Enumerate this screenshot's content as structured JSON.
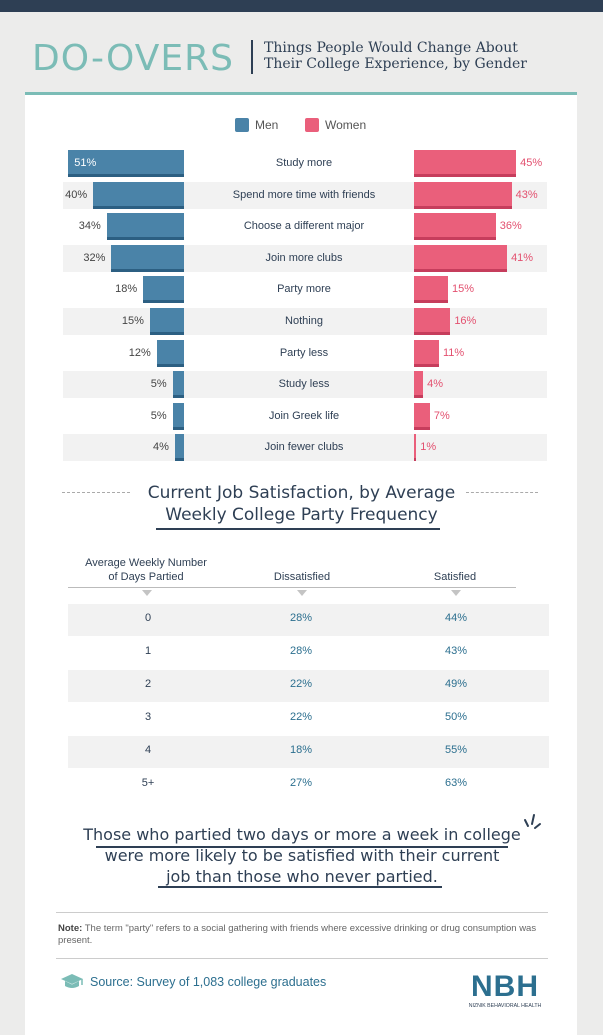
{
  "header": {
    "title": "DO-OVERS",
    "subtitle": "Things People Would Change About Their College Experience, by Gender",
    "title_color": "#7bbcb6",
    "dark_color": "#2e3f54"
  },
  "chart_data": [
    {
      "type": "bar",
      "orientation": "horizontal-butterfly",
      "title": "Things People Would Change About Their College Experience, by Gender",
      "legend": [
        "Men",
        "Women"
      ],
      "categories": [
        "Study more",
        "Spend more time with friends",
        "Choose a different major",
        "Join more clubs",
        "Party more",
        "Nothing",
        "Party less",
        "Study less",
        "Join Greek life",
        "Join fewer clubs"
      ],
      "series": [
        {
          "name": "Men",
          "color": "#4a83a8",
          "values": [
            51,
            40,
            34,
            32,
            18,
            15,
            12,
            5,
            5,
            4
          ],
          "labels": [
            "51%",
            "40%",
            "34%",
            "32%",
            "18%",
            "15%",
            "12%",
            "5%",
            "5%",
            "4%"
          ]
        },
        {
          "name": "Women",
          "color": "#ea5f7b",
          "values": [
            45,
            43,
            36,
            41,
            15,
            16,
            11,
            4,
            7,
            1
          ],
          "labels": [
            "45%",
            "43%",
            "36%",
            "41%",
            "15%",
            "16%",
            "11%",
            "4%",
            "7%",
            "1%"
          ]
        }
      ],
      "unit": "%"
    },
    {
      "type": "table",
      "title": "Current Job Satisfaction, by Average Weekly College Party Frequency",
      "columns": [
        "Average Weekly Number of Days Partied",
        "Dissatisfied",
        "Satisfied"
      ],
      "rows": [
        [
          "0",
          "28%",
          "44%"
        ],
        [
          "1",
          "28%",
          "43%"
        ],
        [
          "2",
          "22%",
          "49%"
        ],
        [
          "3",
          "22%",
          "50%"
        ],
        [
          "4",
          "18%",
          "55%"
        ],
        [
          "5+",
          "27%",
          "63%"
        ]
      ]
    }
  ],
  "table_header": {
    "col0_line1": "Average Weekly Number",
    "col0_line2": "of Days Partied",
    "col1": "Dissatisfied",
    "col2": "Satisfied"
  },
  "table_title": {
    "line1": "Current Job Satisfaction, by Average",
    "line2": "Weekly College Party Frequency"
  },
  "quote": {
    "line1": "Those who partied two days or more a week in college",
    "line2": "were more likely to be satisfied with their current",
    "line3": "job than those who never partied."
  },
  "note": {
    "label": "Note:",
    "text": "The term \"party\" refers to a social gathering with friends where excessive drinking or drug consumption was present."
  },
  "source": {
    "text": "Source: Survey of 1,083 college graduates",
    "icon": "graduation-cap-icon"
  },
  "logo": {
    "mark": "NBH",
    "name": "NIZNIK BEHAVIORAL HEALTH"
  }
}
